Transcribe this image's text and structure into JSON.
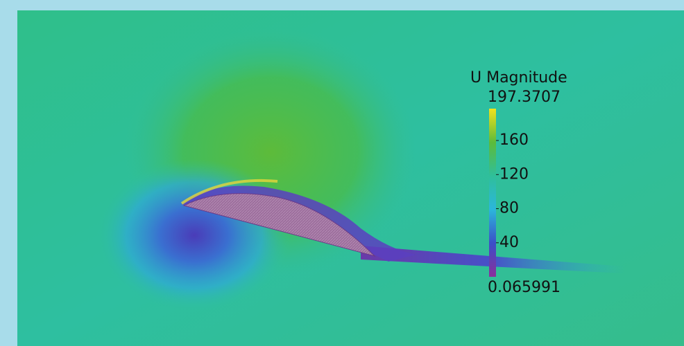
{
  "colorbar": {
    "title": "U Magnitude",
    "range": [
      0.065991,
      197.3707
    ],
    "ticks": [
      40,
      80,
      120,
      160
    ]
  }
}
